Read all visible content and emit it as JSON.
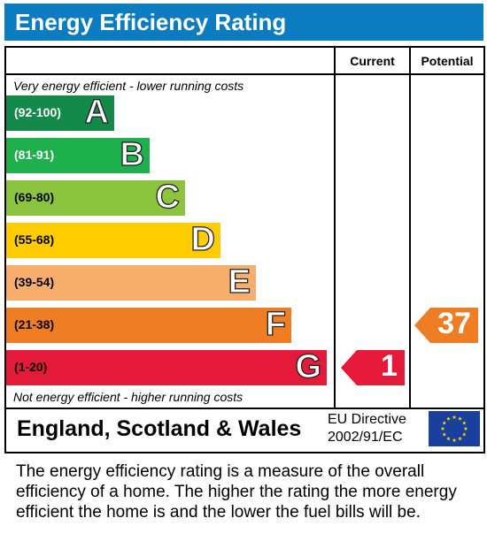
{
  "header": {
    "title": "Energy Efficiency Rating"
  },
  "columns": {
    "current": "Current",
    "potential": "Potential"
  },
  "captions": {
    "top": "Very energy efficient - lower running costs",
    "bottom": "Not energy efficient - higher running costs"
  },
  "chart_data": {
    "type": "bar",
    "title": "Energy Efficiency Rating",
    "bands": [
      {
        "letter": "A",
        "range": "(92-100)",
        "color": "#138a4a",
        "text_color": "#ffffff"
      },
      {
        "letter": "B",
        "range": "(81-91)",
        "color": "#1eb04d",
        "text_color": "#ffffff"
      },
      {
        "letter": "C",
        "range": "(69-80)",
        "color": "#8cc43f",
        "text_color": "#000000"
      },
      {
        "letter": "D",
        "range": "(55-68)",
        "color": "#ffcc00",
        "text_color": "#000000"
      },
      {
        "letter": "E",
        "range": "(39-54)",
        "color": "#f7ae6d",
        "text_color": "#000000"
      },
      {
        "letter": "F",
        "range": "(21-38)",
        "color": "#ef7d24",
        "text_color": "#000000"
      },
      {
        "letter": "G",
        "range": "(1-20)",
        "color": "#e51a3a",
        "text_color": "#000000"
      }
    ],
    "current": {
      "value": 1,
      "band": "G",
      "color": "#e51a3a"
    },
    "potential": {
      "value": 37,
      "band": "F",
      "color": "#ef7d24"
    }
  },
  "footer": {
    "region": "England, Scotland & Wales",
    "directive_line1": "EU Directive",
    "directive_line2": "2002/91/EC",
    "flag_icon": "eu-flag-icon"
  },
  "description": "The energy efficiency rating is a measure of the overall efficiency of a home. The higher the rating the more energy efficient the home is and the lower the fuel bills will be."
}
